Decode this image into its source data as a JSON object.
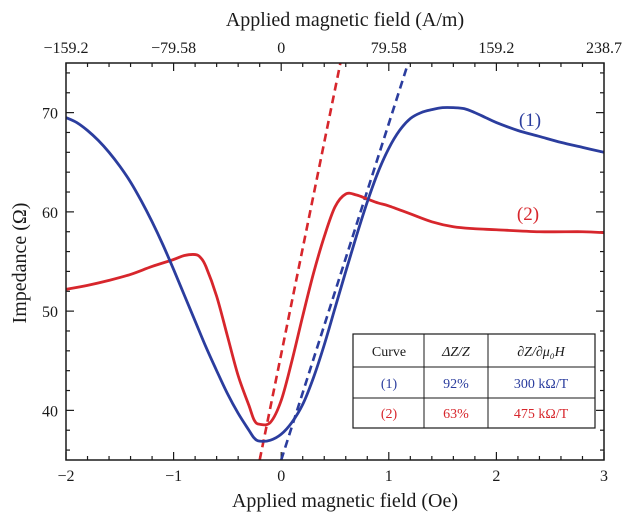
{
  "chart_data": {
    "type": "line",
    "xlabel": "Applied magnetic field (Oe)",
    "x2label": "Applied magnetic field (A/m)",
    "ylabel": "Impedance (Ω)",
    "xlim": [
      -2,
      3
    ],
    "ylim": [
      35,
      75
    ],
    "x_ticks": [
      -2,
      -1,
      0,
      1,
      2,
      3
    ],
    "x_tick_labels": [
      "−2",
      "−1",
      "0",
      "1",
      "2",
      "3"
    ],
    "y_ticks": [
      40,
      50,
      60,
      70
    ],
    "y_tick_labels": [
      "40",
      "50",
      "60",
      "70"
    ],
    "x2_ticks": [
      -2,
      -1,
      0,
      1,
      2,
      3
    ],
    "x2_tick_labels": [
      "−159.2",
      "−79.58",
      "0",
      "79.58",
      "159.2",
      "238.7"
    ],
    "grid": false,
    "series": [
      {
        "name": "(1)",
        "color": "#2b3d9e",
        "points": [
          [
            -2.0,
            69.5
          ],
          [
            -1.9,
            69.0
          ],
          [
            -1.8,
            68.2
          ],
          [
            -1.7,
            67.2
          ],
          [
            -1.6,
            66.0
          ],
          [
            -1.5,
            64.6
          ],
          [
            -1.4,
            63.0
          ],
          [
            -1.3,
            61.1
          ],
          [
            -1.2,
            59.0
          ],
          [
            -1.1,
            56.7
          ],
          [
            -1.0,
            54.2
          ],
          [
            -0.9,
            51.6
          ],
          [
            -0.8,
            49.0
          ],
          [
            -0.7,
            46.4
          ],
          [
            -0.6,
            44.0
          ],
          [
            -0.5,
            41.7
          ],
          [
            -0.4,
            39.7
          ],
          [
            -0.3,
            38.0
          ],
          [
            -0.25,
            37.2
          ],
          [
            -0.2,
            36.9
          ],
          [
            -0.1,
            37.0
          ],
          [
            0.0,
            37.6
          ],
          [
            0.1,
            38.8
          ],
          [
            0.2,
            40.6
          ],
          [
            0.3,
            43.3
          ],
          [
            0.4,
            46.6
          ],
          [
            0.5,
            50.3
          ],
          [
            0.6,
            54.0
          ],
          [
            0.7,
            57.6
          ],
          [
            0.8,
            61.0
          ],
          [
            0.9,
            64.0
          ],
          [
            1.0,
            66.4
          ],
          [
            1.1,
            68.2
          ],
          [
            1.2,
            69.4
          ],
          [
            1.3,
            70.0
          ],
          [
            1.4,
            70.3
          ],
          [
            1.5,
            70.5
          ],
          [
            1.6,
            70.5
          ],
          [
            1.7,
            70.4
          ],
          [
            1.8,
            70.0
          ],
          [
            1.9,
            69.5
          ],
          [
            2.0,
            69.0
          ],
          [
            2.2,
            68.2
          ],
          [
            2.4,
            67.6
          ],
          [
            2.6,
            67.0
          ],
          [
            2.8,
            66.5
          ],
          [
            3.0,
            66.0
          ]
        ],
        "tangent": [
          [
            0.0,
            35.0
          ],
          [
            1.18,
            75.0
          ]
        ],
        "delta_z": "92%",
        "sensitivity": "300 kΩ/T"
      },
      {
        "name": "(2)",
        "color": "#d7262c",
        "points": [
          [
            -2.0,
            52.2
          ],
          [
            -1.8,
            52.6
          ],
          [
            -1.6,
            53.1
          ],
          [
            -1.4,
            53.7
          ],
          [
            -1.2,
            54.5
          ],
          [
            -1.0,
            55.2
          ],
          [
            -0.9,
            55.6
          ],
          [
            -0.8,
            55.7
          ],
          [
            -0.75,
            55.4
          ],
          [
            -0.7,
            54.5
          ],
          [
            -0.6,
            51.5
          ],
          [
            -0.5,
            47.5
          ],
          [
            -0.4,
            43.5
          ],
          [
            -0.3,
            40.5
          ],
          [
            -0.25,
            39.0
          ],
          [
            -0.2,
            38.6
          ],
          [
            -0.1,
            38.8
          ],
          [
            0.0,
            41.0
          ],
          [
            0.1,
            45.0
          ],
          [
            0.2,
            49.5
          ],
          [
            0.3,
            53.8
          ],
          [
            0.4,
            57.5
          ],
          [
            0.5,
            60.5
          ],
          [
            0.6,
            61.8
          ],
          [
            0.7,
            61.7
          ],
          [
            0.8,
            61.3
          ],
          [
            0.9,
            60.9
          ],
          [
            1.0,
            60.6
          ],
          [
            1.2,
            59.8
          ],
          [
            1.4,
            59.0
          ],
          [
            1.6,
            58.5
          ],
          [
            1.8,
            58.3
          ],
          [
            2.0,
            58.2
          ],
          [
            2.4,
            58.0
          ],
          [
            2.8,
            58.0
          ],
          [
            3.0,
            57.9
          ]
        ],
        "tangent": [
          [
            -0.2,
            35.0
          ],
          [
            0.55,
            75.0
          ]
        ],
        "delta_z": "63%",
        "sensitivity": "475 kΩ/T"
      }
    ],
    "table": {
      "headers": [
        "Curve",
        "ΔZ/Z",
        "∂Z/∂μ₀H"
      ],
      "rows": [
        [
          "(1)",
          "92%",
          "300 kΩ/T"
        ],
        [
          "(2)",
          "63%",
          "475 kΩ/T"
        ]
      ]
    }
  }
}
